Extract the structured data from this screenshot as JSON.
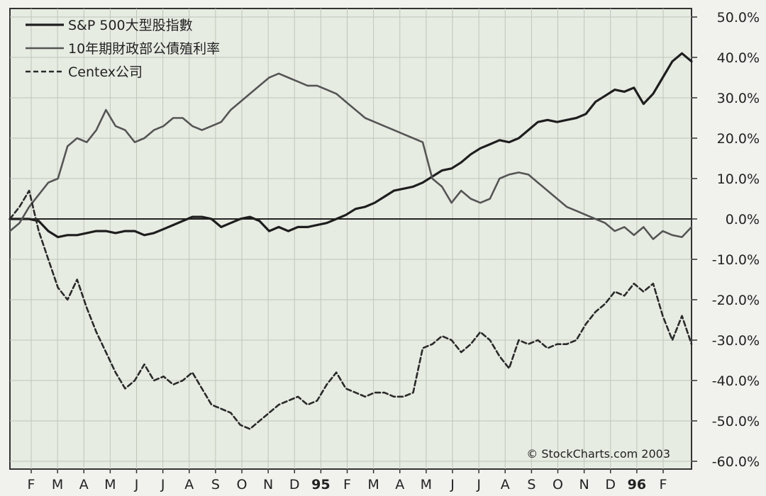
{
  "chart_data": {
    "type": "line",
    "title": "",
    "xlabel": "",
    "ylabel": "",
    "x_tick_labels": [
      "F",
      "M",
      "A",
      "M",
      "J",
      "J",
      "A",
      "S",
      "O",
      "N",
      "D",
      "95",
      "F",
      "M",
      "A",
      "M",
      "J",
      "J",
      "A",
      "S",
      "O",
      "N",
      "D",
      "96",
      "F"
    ],
    "y_tick_labels": [
      "50.0%",
      "40.0%",
      "30.0%",
      "20.0%",
      "10.0%",
      "0.0%",
      "-10.0%",
      "-20.0%",
      "-30.0%",
      "-40.0%",
      "-50.0%",
      "-60.0%"
    ],
    "ylim": [
      -60,
      50
    ],
    "y_axis_side": "right",
    "grid": true,
    "zero_line": true,
    "legend_position": "top-left",
    "copyright": "© StockCharts.com 2003",
    "series": [
      {
        "name": "S&P 500大型股指數",
        "style": "solid-thick",
        "color": "#1e1e1e",
        "points": [
          [
            0,
            0
          ],
          [
            1,
            0
          ],
          [
            2,
            0
          ],
          [
            3,
            -0.5
          ],
          [
            4,
            -3
          ],
          [
            5,
            -4.5
          ],
          [
            6,
            -4
          ],
          [
            7,
            -4
          ],
          [
            8,
            -3.5
          ],
          [
            9,
            -3
          ],
          [
            10,
            -3
          ],
          [
            11,
            -3.5
          ],
          [
            12,
            -3
          ],
          [
            13,
            -3
          ],
          [
            14,
            -4
          ],
          [
            15,
            -3.5
          ],
          [
            16,
            -2.5
          ],
          [
            17,
            -1.5
          ],
          [
            18,
            -0.5
          ],
          [
            19,
            0.5
          ],
          [
            20,
            0.5
          ],
          [
            21,
            0
          ],
          [
            22,
            -2
          ],
          [
            23,
            -1
          ],
          [
            24,
            0
          ],
          [
            25,
            0.5
          ],
          [
            26,
            -0.5
          ],
          [
            27,
            -3
          ],
          [
            28,
            -2
          ],
          [
            29,
            -3
          ],
          [
            30,
            -2
          ],
          [
            31,
            -2
          ],
          [
            32,
            -1.5
          ],
          [
            33,
            -1
          ],
          [
            34,
            0
          ],
          [
            35,
            1
          ],
          [
            36,
            2.5
          ],
          [
            37,
            3
          ],
          [
            38,
            4
          ],
          [
            39,
            5.5
          ],
          [
            40,
            7
          ],
          [
            41,
            7.5
          ],
          [
            42,
            8
          ],
          [
            43,
            9
          ],
          [
            44,
            10.5
          ],
          [
            45,
            12
          ],
          [
            46,
            12.5
          ],
          [
            47,
            14
          ],
          [
            48,
            16
          ],
          [
            49,
            17.5
          ],
          [
            50,
            18.5
          ],
          [
            51,
            19.5
          ],
          [
            52,
            19
          ],
          [
            53,
            20
          ],
          [
            54,
            22
          ],
          [
            55,
            24
          ],
          [
            56,
            24.5
          ],
          [
            57,
            24
          ],
          [
            58,
            24.5
          ],
          [
            59,
            25
          ],
          [
            60,
            26
          ],
          [
            61,
            29
          ],
          [
            62,
            30.5
          ],
          [
            63,
            32
          ],
          [
            64,
            31.5
          ],
          [
            65,
            32.5
          ],
          [
            66,
            28.5
          ],
          [
            67,
            31
          ],
          [
            68,
            35
          ],
          [
            69,
            39
          ],
          [
            70,
            41
          ],
          [
            71,
            39
          ]
        ]
      },
      {
        "name": "10年期財政部公債殖利率",
        "style": "solid-medium",
        "color": "#555555",
        "points": [
          [
            0,
            -3
          ],
          [
            1,
            -1
          ],
          [
            2,
            3
          ],
          [
            3,
            6
          ],
          [
            4,
            9
          ],
          [
            5,
            10
          ],
          [
            6,
            18
          ],
          [
            7,
            20
          ],
          [
            8,
            19
          ],
          [
            9,
            22
          ],
          [
            10,
            27
          ],
          [
            11,
            23
          ],
          [
            12,
            22
          ],
          [
            13,
            19
          ],
          [
            14,
            20
          ],
          [
            15,
            22
          ],
          [
            16,
            23
          ],
          [
            17,
            25
          ],
          [
            18,
            25
          ],
          [
            19,
            23
          ],
          [
            20,
            22
          ],
          [
            21,
            23
          ],
          [
            22,
            24
          ],
          [
            23,
            27
          ],
          [
            24,
            29
          ],
          [
            25,
            31
          ],
          [
            26,
            33
          ],
          [
            27,
            35
          ],
          [
            28,
            36
          ],
          [
            29,
            35
          ],
          [
            30,
            34
          ],
          [
            31,
            33
          ],
          [
            32,
            33
          ],
          [
            33,
            32
          ],
          [
            34,
            31
          ],
          [
            35,
            29
          ],
          [
            36,
            27
          ],
          [
            37,
            25
          ],
          [
            38,
            24
          ],
          [
            39,
            23
          ],
          [
            40,
            22
          ],
          [
            41,
            21
          ],
          [
            42,
            20
          ],
          [
            43,
            19
          ],
          [
            44,
            10
          ],
          [
            45,
            8
          ],
          [
            46,
            4
          ],
          [
            47,
            7
          ],
          [
            48,
            5
          ],
          [
            49,
            4
          ],
          [
            50,
            5
          ],
          [
            51,
            10
          ],
          [
            52,
            11
          ],
          [
            53,
            11.5
          ],
          [
            54,
            11
          ],
          [
            55,
            9
          ],
          [
            56,
            7
          ],
          [
            57,
            5
          ],
          [
            58,
            3
          ],
          [
            59,
            2
          ],
          [
            60,
            1
          ],
          [
            61,
            0
          ],
          [
            62,
            -1
          ],
          [
            63,
            -3
          ],
          [
            64,
            -2
          ],
          [
            65,
            -4
          ],
          [
            66,
            -2
          ],
          [
            67,
            -5
          ],
          [
            68,
            -3
          ],
          [
            69,
            -4
          ],
          [
            70,
            -4.5
          ],
          [
            71,
            -2
          ]
        ]
      },
      {
        "name": "Centex公司",
        "style": "dashed",
        "color": "#2a2a2a",
        "points": [
          [
            0,
            0
          ],
          [
            1,
            3
          ],
          [
            2,
            7
          ],
          [
            3,
            -3
          ],
          [
            4,
            -10
          ],
          [
            5,
            -17
          ],
          [
            6,
            -20
          ],
          [
            7,
            -15
          ],
          [
            8,
            -22
          ],
          [
            9,
            -28
          ],
          [
            10,
            -33
          ],
          [
            11,
            -38
          ],
          [
            12,
            -42
          ],
          [
            13,
            -40
          ],
          [
            14,
            -36
          ],
          [
            15,
            -40
          ],
          [
            16,
            -39
          ],
          [
            17,
            -41
          ],
          [
            18,
            -40
          ],
          [
            19,
            -38
          ],
          [
            20,
            -42
          ],
          [
            21,
            -46
          ],
          [
            22,
            -47
          ],
          [
            23,
            -48
          ],
          [
            24,
            -51
          ],
          [
            25,
            -52
          ],
          [
            26,
            -50
          ],
          [
            27,
            -48
          ],
          [
            28,
            -46
          ],
          [
            29,
            -45
          ],
          [
            30,
            -44
          ],
          [
            31,
            -46
          ],
          [
            32,
            -45
          ],
          [
            33,
            -41
          ],
          [
            34,
            -38
          ],
          [
            35,
            -42
          ],
          [
            36,
            -43
          ],
          [
            37,
            -44
          ],
          [
            38,
            -43
          ],
          [
            39,
            -43
          ],
          [
            40,
            -44
          ],
          [
            41,
            -44
          ],
          [
            42,
            -43
          ],
          [
            43,
            -32
          ],
          [
            44,
            -31
          ],
          [
            45,
            -29
          ],
          [
            46,
            -30
          ],
          [
            47,
            -33
          ],
          [
            48,
            -31
          ],
          [
            49,
            -28
          ],
          [
            50,
            -30
          ],
          [
            51,
            -34
          ],
          [
            52,
            -37
          ],
          [
            53,
            -30
          ],
          [
            54,
            -31
          ],
          [
            55,
            -30
          ],
          [
            56,
            -32
          ],
          [
            57,
            -31
          ],
          [
            58,
            -31
          ],
          [
            59,
            -30
          ],
          [
            60,
            -26
          ],
          [
            61,
            -23
          ],
          [
            62,
            -21
          ],
          [
            63,
            -18
          ],
          [
            64,
            -19
          ],
          [
            65,
            -16
          ],
          [
            66,
            -18
          ],
          [
            67,
            -16
          ],
          [
            68,
            -24
          ],
          [
            69,
            -30
          ],
          [
            70,
            -24
          ],
          [
            71,
            -31
          ]
        ]
      }
    ]
  }
}
